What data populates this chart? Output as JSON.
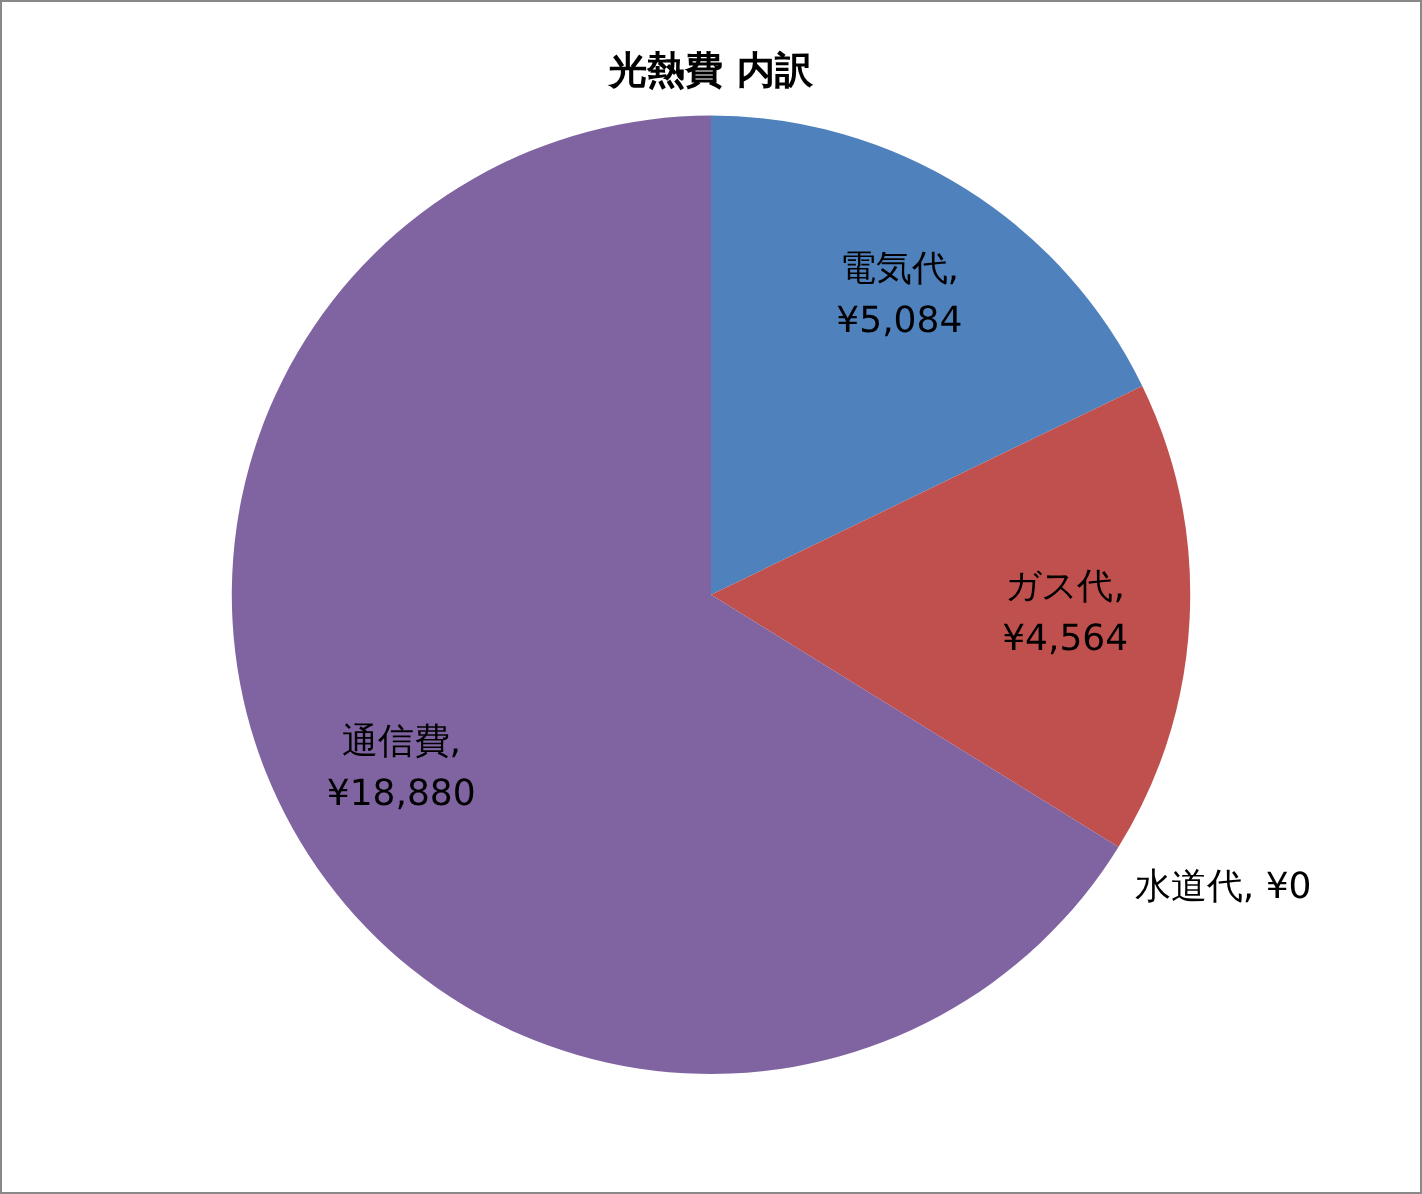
{
  "chart_data": {
    "type": "pie",
    "title": "光熱費 内訳",
    "categories": [
      "電気代",
      "ガス代",
      "水道代",
      "通信費"
    ],
    "values": [
      5084,
      4564,
      0,
      18880
    ],
    "value_labels": [
      ", ¥5,084",
      ", ¥4,564",
      ", ¥0",
      ", ¥18,880"
    ],
    "colors": [
      "#4f81bd",
      "#c0504d",
      "#9bbb59",
      "#8064a2"
    ],
    "legend": false
  }
}
